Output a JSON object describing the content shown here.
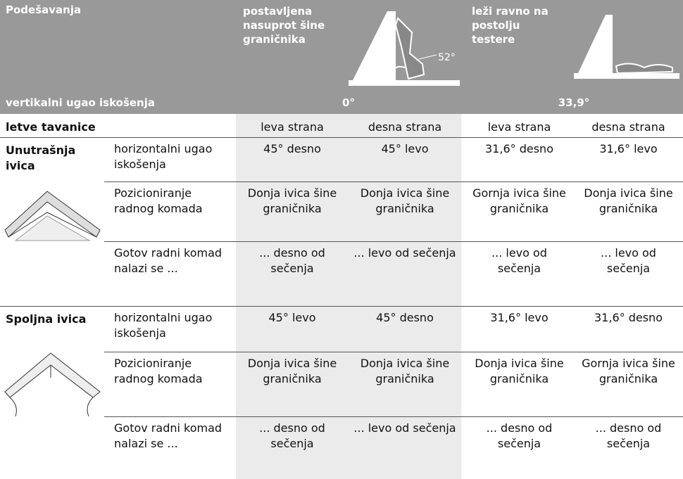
{
  "header": {
    "title": "Podešavanja",
    "options": [
      {
        "label": "postavljena nasuprot šine graničnika",
        "angle": "52°"
      },
      {
        "label": "leži ravno na postolju testere"
      }
    ],
    "bevel_label": "vertikalni ugao iskošenja",
    "bevel_values": [
      "0°",
      "33,9°"
    ]
  },
  "subheader": {
    "label": "letve tavanice",
    "columns": [
      "leva strana",
      "desna strana",
      "leva strana",
      "desna strana"
    ]
  },
  "sections": [
    {
      "name": "Unutrašnja ivica",
      "rows": [
        {
          "label": "horizontalni ugao iskošenja",
          "cells": [
            "45° desno",
            "45° levo",
            "31,6° desno",
            "31,6° levo"
          ]
        },
        {
          "label": "Pozicioniranje radnog komada",
          "cells": [
            "Donja ivica šine graničnika",
            "Donja ivica šine graničnika",
            "Gornja ivica šine graničnika",
            "Donja ivica šine graničnika"
          ]
        },
        {
          "label": "Gotov radni komad nalazi se ...",
          "cells": [
            "... desno od sečenja",
            "... levo od sečenja",
            "... levo od sečenja",
            "... levo od sečenja"
          ]
        }
      ]
    },
    {
      "name": "Spoljna ivica",
      "rows": [
        {
          "label": "horizontalni ugao iskošenja",
          "cells": [
            "45° levo",
            "45° desno",
            "31,6° levo",
            "31,6° desno"
          ]
        },
        {
          "label": "Pozicioniranje radnog komada",
          "cells": [
            "Donja ivica šine graničnika",
            "Donja ivica šine graničnika",
            "Donja ivica šine graničnika",
            "Gornja ivica šine graničnika"
          ]
        },
        {
          "label": "Gotov radni komad nalazi se ...",
          "cells": [
            "... desno od sečenja",
            "... levo od sečenja",
            "... desno od sečenja",
            "... desno od sečenja"
          ]
        }
      ]
    }
  ]
}
